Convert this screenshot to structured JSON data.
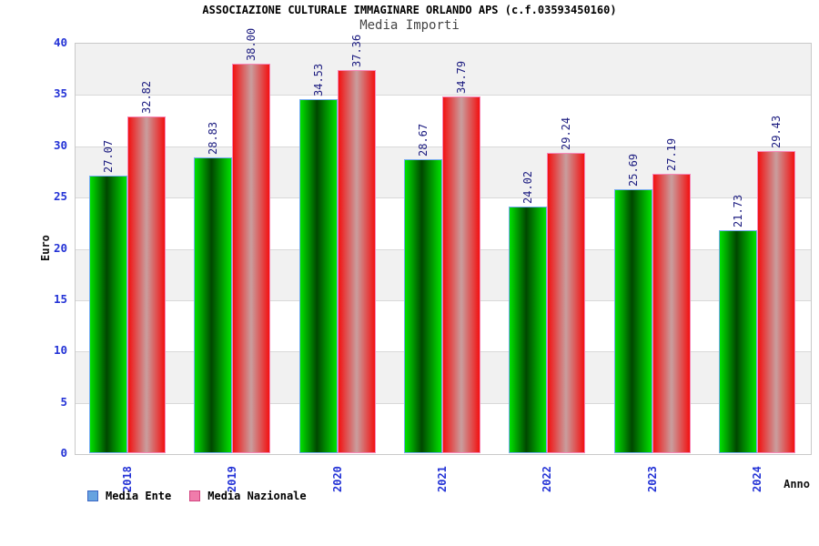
{
  "title": "ASSOCIAZIONE CULTURALE IMMAGINARE ORLANDO APS (c.f.03593450160)",
  "subtitle": "Media Importi",
  "chart_data": {
    "type": "bar",
    "categories": [
      "2018",
      "2019",
      "2020",
      "2021",
      "2022",
      "2023",
      "2024"
    ],
    "series": [
      {
        "name": "Media Ente",
        "values": [
          27.07,
          28.83,
          34.53,
          28.67,
          24.02,
          25.69,
          21.73
        ]
      },
      {
        "name": "Media Nazionale",
        "values": [
          32.82,
          38.0,
          37.36,
          34.79,
          29.24,
          27.19,
          29.43
        ]
      }
    ],
    "value_label_decimals": 2,
    "xlabel": "Anno",
    "ylabel": "Euro",
    "ylim": [
      0,
      40
    ],
    "yticks": [
      0,
      5,
      10,
      15,
      20,
      25,
      30,
      35,
      40
    ],
    "grid": "horizontal gridlines with alternating gray/white bands",
    "legend_position": "bottom-left",
    "bar_value_labels": "rotated 90deg above each bar",
    "xtick_labels_rotated": true
  },
  "legend": {
    "items": [
      {
        "label": "Media Ente",
        "swatch_fill": "#66a3e0",
        "swatch_border": "#3b66c4"
      },
      {
        "label": "Media Nazionale",
        "swatch_fill": "#f07cab",
        "swatch_border": "#d1437f"
      }
    ]
  },
  "colors": {
    "ente_bar_bright": "#00e100",
    "ente_bar_dark": "#004700",
    "ente_bar_border": "#74aaf0",
    "nazionale_bar_edge": "#f21111",
    "nazionale_bar_highlight": "#c99e9e",
    "nazionale_bar_border": "#f787b8",
    "axis_tick_text": "#2433d6",
    "value_label_text": "#1c1c80",
    "band_gray": "#f1f1f1",
    "band_white": "#ffffff",
    "grid_line": "#d9d9d9",
    "plot_border": "#c9c9c9"
  }
}
